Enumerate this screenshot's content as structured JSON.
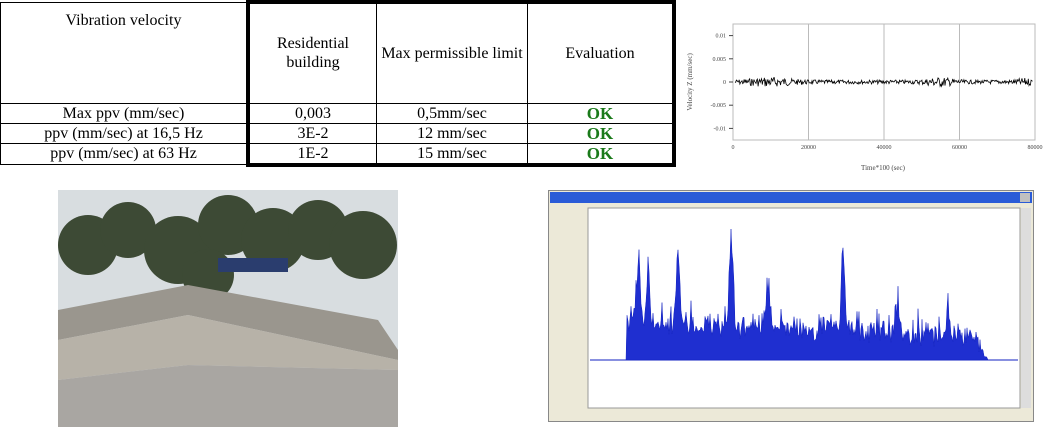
{
  "table": {
    "header": [
      "Vibration velocity",
      "Residential building",
      "Max permissible limit",
      "Evaluation"
    ],
    "rows": [
      [
        "Max   ppv (mm/sec)",
        "0,003",
        "0,5mm/sec",
        "OK"
      ],
      [
        "ppv (mm/sec) at 16,5 Hz",
        "3E-2",
        "12  mm/sec",
        "OK"
      ],
      [
        "ppv (mm/sec) at 63 Hz",
        "1E-2",
        "15  mm/sec",
        "OK"
      ]
    ]
  },
  "chart": {
    "type": "line",
    "xlabel": "Time*100 (sec)",
    "ylabel": "Velocity Z (mm/sec)",
    "xlim": [
      0,
      80000
    ],
    "ylim": [
      -0.0125,
      0.0125
    ],
    "xticks": [
      0,
      20000,
      40000,
      60000,
      80000
    ],
    "yticks": [
      0.01,
      0.005,
      0,
      -0.005,
      -0.01
    ],
    "grid": true
  }
}
